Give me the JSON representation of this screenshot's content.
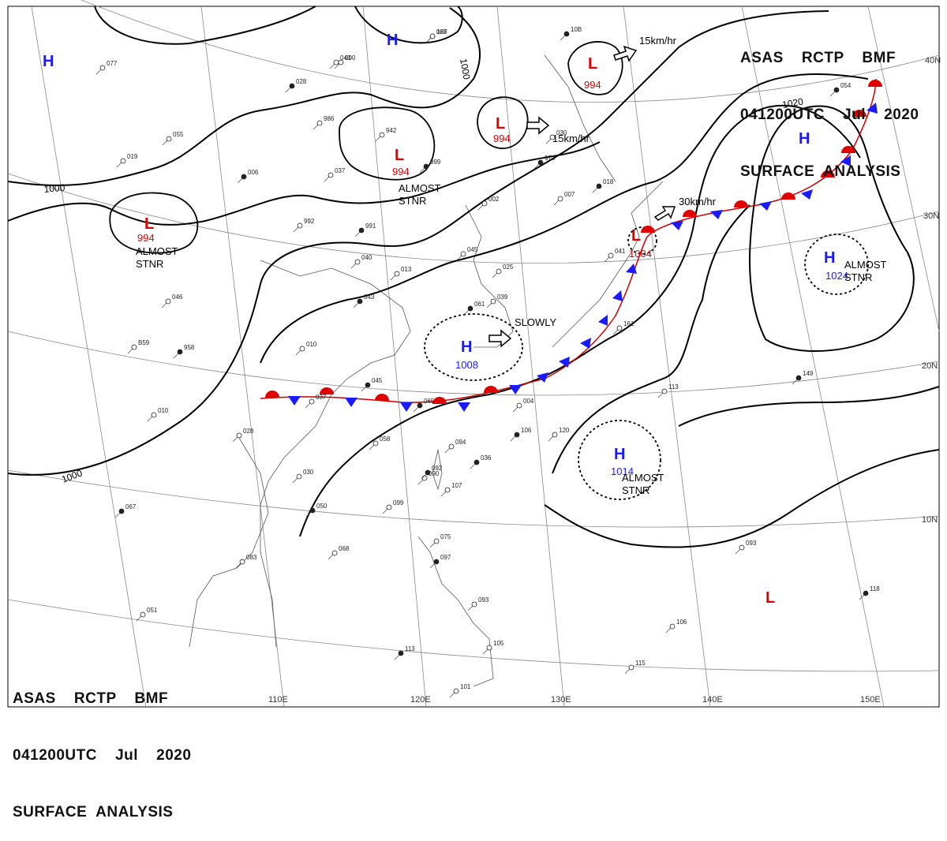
{
  "header": {
    "agency_line": "ASAS    RCTP    BMF",
    "time_line": "041200UTC    Jul    2020",
    "title_line": "SURFACE  ANALYSIS"
  },
  "colors": {
    "high": "#1a1aff",
    "low": "#e00000",
    "isobar": "#000000",
    "grid": "#888888",
    "land": "#555555"
  },
  "lat_labels": [
    "40N",
    "30N",
    "20N",
    "10N"
  ],
  "lon_labels": [
    "110E",
    "120E",
    "130E",
    "140E",
    "150E"
  ],
  "isobar_labels": [
    "1000",
    "1000",
    "1000",
    "1020"
  ],
  "systems": [
    {
      "type": "H",
      "pressure": ""
    },
    {
      "type": "H",
      "pressure": ""
    },
    {
      "type": "L",
      "pressure": "994"
    },
    {
      "type": "L",
      "pressure": "994"
    },
    {
      "type": "L",
      "pressure": "994"
    },
    {
      "type": "L",
      "pressure": "994"
    },
    {
      "type": "H",
      "pressure": ""
    },
    {
      "type": "L",
      "pressure": "1004"
    },
    {
      "type": "H",
      "pressure": "1024"
    },
    {
      "type": "H",
      "pressure": "1008"
    },
    {
      "type": "H",
      "pressure": "1014"
    },
    {
      "type": "L",
      "pressure": ""
    }
  ],
  "annotations": [
    "ALMOST\nSTNR",
    "ALMOST\nSTNR",
    "ALMOST\nSTNR",
    "ALMOST\nSTNR",
    "SLOWLY",
    "15km/hr",
    "15km/hr",
    "30km/hr"
  ],
  "stations": [
    "028",
    "040",
    "077",
    "028",
    "986",
    "942",
    "999",
    "055",
    "019",
    "006",
    "037",
    "992",
    "991",
    "040",
    "013",
    "043",
    "046",
    "B59",
    "958",
    "010",
    "010",
    "045",
    "037",
    "028",
    "065",
    "058",
    "094",
    "106",
    "120",
    "004",
    "036",
    "090",
    "030",
    "092",
    "107",
    "099",
    "050",
    "068",
    "083",
    "067",
    "051",
    "075",
    "097",
    "093",
    "105",
    "113",
    "101",
    "113",
    "149",
    "161",
    "093",
    "118",
    "106",
    "115",
    "10B",
    "000",
    "030",
    "973",
    "002",
    "007",
    "018",
    "041",
    "039",
    "061",
    "045",
    "025",
    "054",
    "167"
  ]
}
